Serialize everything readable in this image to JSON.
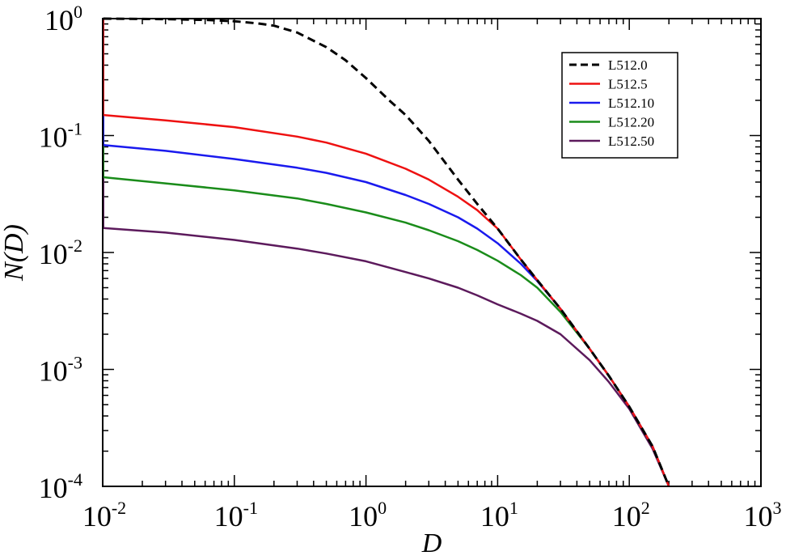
{
  "chart_data": {
    "type": "line",
    "xscale": "log",
    "yscale": "log",
    "xlim": [
      0.01,
      1000
    ],
    "ylim": [
      0.0001,
      1
    ],
    "xlabel": "D",
    "ylabel": "N(D)",
    "legend_position": "top-right",
    "grid": false,
    "x_ticks": [
      {
        "base": "10",
        "exp": "-2",
        "value": 0.01
      },
      {
        "base": "10",
        "exp": "-1",
        "value": 0.1
      },
      {
        "base": "10",
        "exp": "0",
        "value": 1
      },
      {
        "base": "10",
        "exp": "1",
        "value": 10
      },
      {
        "base": "10",
        "exp": "2",
        "value": 100
      },
      {
        "base": "10",
        "exp": "3",
        "value": 1000
      }
    ],
    "y_ticks": [
      {
        "base": "10",
        "exp": "-4",
        "value": 0.0001
      },
      {
        "base": "10",
        "exp": "-3",
        "value": 0.001
      },
      {
        "base": "10",
        "exp": "-2",
        "value": 0.01
      },
      {
        "base": "10",
        "exp": "-1",
        "value": 0.1
      },
      {
        "base": "10",
        "exp": "0",
        "value": 1
      }
    ],
    "series": [
      {
        "name": "L512.0",
        "color": "#000000",
        "dashed": true,
        "x": [
          0.0101,
          0.03,
          0.06,
          0.1,
          0.15,
          0.2,
          0.3,
          0.5,
          0.7,
          1,
          1.5,
          2,
          3,
          5,
          7,
          10,
          15,
          20,
          30,
          50,
          70,
          100,
          150,
          200
        ],
        "y": [
          1.0,
          0.99,
          0.975,
          0.95,
          0.91,
          0.87,
          0.76,
          0.57,
          0.44,
          0.31,
          0.2,
          0.15,
          0.09,
          0.042,
          0.026,
          0.016,
          0.0087,
          0.0058,
          0.0033,
          0.0015,
          0.00088,
          0.00048,
          0.00022,
          0.0001
        ]
      },
      {
        "name": "L512.5",
        "color": "#ee1111",
        "dashed": false,
        "x": [
          0.0101,
          0.03,
          0.1,
          0.3,
          0.5,
          1,
          2,
          3,
          5,
          7,
          10,
          15,
          20,
          30,
          50,
          70,
          100,
          150,
          200
        ],
        "y": [
          0.15,
          0.135,
          0.118,
          0.098,
          0.087,
          0.07,
          0.052,
          0.042,
          0.03,
          0.023,
          0.016,
          0.0087,
          0.0058,
          0.0033,
          0.0015,
          0.00088,
          0.00048,
          0.00022,
          0.0001
        ]
      },
      {
        "name": "L512.10",
        "color": "#1a1aee",
        "dashed": false,
        "x": [
          0.0101,
          0.03,
          0.1,
          0.3,
          0.5,
          1,
          2,
          3,
          5,
          7,
          10,
          15,
          20,
          30,
          50,
          70,
          100,
          150,
          200
        ],
        "y": [
          0.083,
          0.074,
          0.063,
          0.053,
          0.048,
          0.04,
          0.031,
          0.026,
          0.02,
          0.016,
          0.012,
          0.008,
          0.0057,
          0.0033,
          0.0015,
          0.00088,
          0.00048,
          0.00022,
          0.0001
        ]
      },
      {
        "name": "L512.20",
        "color": "#1a8c1a",
        "dashed": false,
        "x": [
          0.0101,
          0.03,
          0.1,
          0.3,
          0.5,
          1,
          2,
          3,
          5,
          7,
          10,
          15,
          20,
          30,
          50,
          70,
          100,
          150,
          200
        ],
        "y": [
          0.044,
          0.039,
          0.034,
          0.029,
          0.026,
          0.022,
          0.018,
          0.0155,
          0.0125,
          0.0105,
          0.0085,
          0.0064,
          0.005,
          0.0031,
          0.0015,
          0.00088,
          0.00048,
          0.00022,
          0.0001
        ]
      },
      {
        "name": "L512.50",
        "color": "#5c1a5c",
        "dashed": false,
        "x": [
          0.0101,
          0.03,
          0.1,
          0.3,
          0.5,
          1,
          2,
          3,
          5,
          7,
          10,
          15,
          20,
          30,
          50,
          70,
          100,
          150,
          200
        ],
        "y": [
          0.0162,
          0.0148,
          0.0128,
          0.0108,
          0.0098,
          0.0084,
          0.0068,
          0.006,
          0.005,
          0.0043,
          0.0036,
          0.003,
          0.0026,
          0.002,
          0.0012,
          0.00078,
          0.00046,
          0.00021,
          0.0001
        ]
      }
    ]
  }
}
